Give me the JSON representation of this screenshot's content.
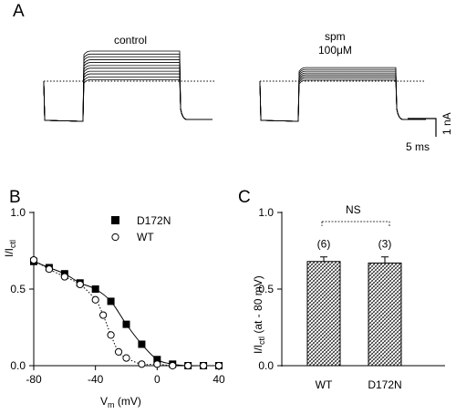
{
  "panels": {
    "a": "A",
    "b": "B",
    "c": "C"
  },
  "panel_a": {
    "label_control": "control",
    "label_spm_1": "spm",
    "label_spm_2": "100μM",
    "scale_y": "1 nA",
    "scale_x": "5 ms",
    "control_steps": [
      0.05,
      0.14,
      0.24,
      0.33,
      0.43,
      0.52,
      0.62,
      0.71,
      0.81,
      0.9,
      1.0
    ],
    "spm_steps": [
      0.03,
      0.09,
      0.15,
      0.21,
      0.27,
      0.33,
      0.39,
      0.45
    ]
  },
  "chart_data": [
    {
      "type": "scatter",
      "panel": "B",
      "xlabel_main": "V",
      "xlabel_sub": "m",
      "xlabel_unit": " (mV)",
      "ylabel_main": "I/I",
      "ylabel_sub": "ctl",
      "xlim": [
        -80,
        40
      ],
      "ylim": [
        0,
        1.0
      ],
      "xticks": [
        -80,
        -40,
        0,
        40
      ],
      "yticks": [
        0.0,
        0.5,
        1.0
      ],
      "ytick_labels": [
        "0.0",
        "0.5",
        "1.0"
      ],
      "legend_position": "top-right",
      "series": [
        {
          "name": "D172N",
          "marker": "filled-square",
          "line": "solid",
          "x": [
            -80,
            -70,
            -60,
            -50,
            -40,
            -30,
            -20,
            -10,
            0,
            10,
            20,
            30,
            40
          ],
          "y": [
            0.68,
            0.64,
            0.6,
            0.54,
            0.5,
            0.42,
            0.27,
            0.14,
            0.04,
            0.01,
            0.0,
            0.0,
            0.0
          ]
        },
        {
          "name": "WT",
          "marker": "open-circle",
          "line": "dotted",
          "x": [
            -80,
            -70,
            -60,
            -50,
            -40,
            -35,
            -30,
            -25,
            -20,
            -10,
            0,
            10,
            20,
            30,
            40
          ],
          "y": [
            0.69,
            0.63,
            0.58,
            0.53,
            0.43,
            0.33,
            0.2,
            0.09,
            0.05,
            0.01,
            0.01,
            0.0,
            0.0,
            0.0,
            0.0
          ]
        }
      ]
    },
    {
      "type": "bar",
      "panel": "C",
      "categories": [
        "WT",
        "D172N"
      ],
      "values": [
        0.68,
        0.67
      ],
      "errors": [
        0.03,
        0.04
      ],
      "n_labels": [
        "(6)",
        "(3)"
      ],
      "significance": "NS",
      "ylabel": "I/I",
      "ylabel_sub": "ctl",
      "ylabel_suffix": " (at - 80 mV)",
      "ylim": [
        0,
        1.0
      ],
      "yticks": [
        0.0,
        0.5,
        1.0
      ],
      "ytick_labels": [
        "0.0",
        "0.5",
        "1.0"
      ]
    }
  ]
}
